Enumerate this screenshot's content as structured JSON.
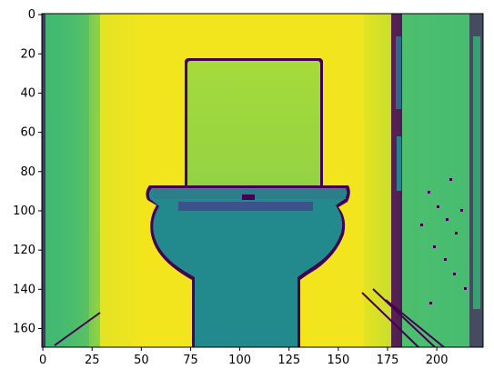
{
  "chart_data": {
    "type": "heatmap",
    "title": "",
    "xlabel": "",
    "ylabel": "",
    "colormap": "viridis",
    "image_shape": [
      170,
      224
    ],
    "xlim": [
      -0.5,
      223.5
    ],
    "ylim": [
      169.5,
      -0.5
    ],
    "x_ticks": [
      0,
      25,
      50,
      75,
      100,
      125,
      150,
      175,
      200
    ],
    "y_ticks": [
      0,
      20,
      40,
      60,
      80,
      100,
      120,
      140,
      160
    ],
    "x_tick_labels": [
      "0",
      "25",
      "50",
      "75",
      "100",
      "125",
      "150",
      "175",
      "200"
    ],
    "y_tick_labels": [
      "0",
      "20",
      "40",
      "60",
      "80",
      "100",
      "120",
      "140",
      "160"
    ],
    "colors": {
      "dark": "#440154",
      "teal": "#238a8d",
      "green": "#3cb877",
      "yellowgreen": "#9ad93b",
      "yellow": "#f2e51f"
    },
    "scene": "depth image of a toilet with tank against a wall"
  }
}
